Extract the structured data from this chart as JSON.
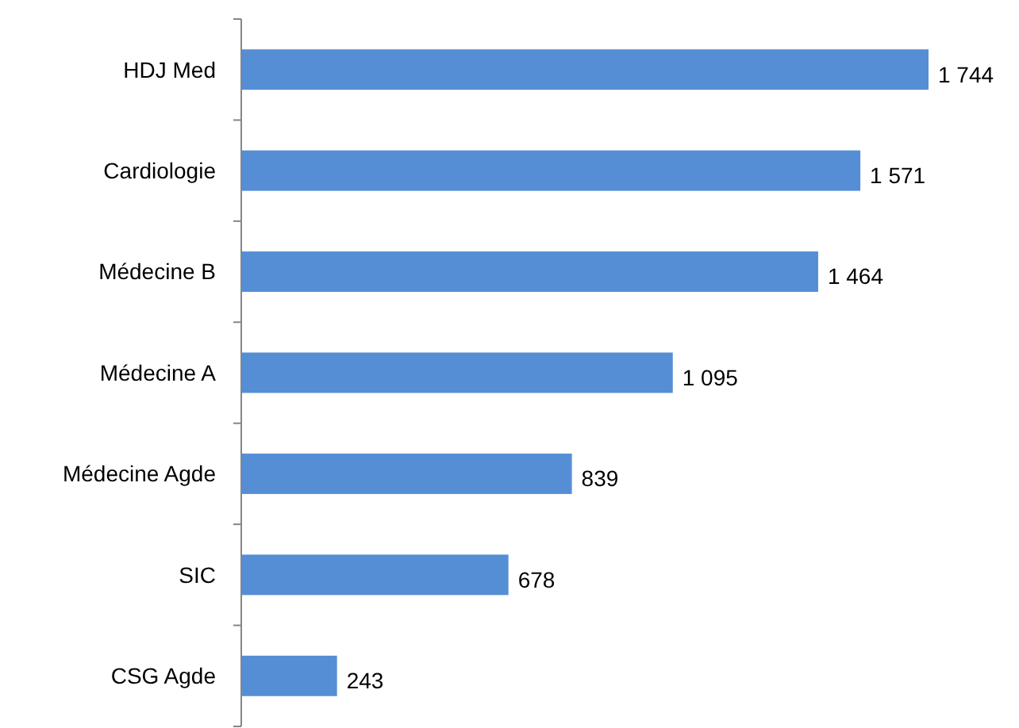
{
  "chart_data": {
    "type": "bar",
    "orientation": "horizontal",
    "categories": [
      "HDJ Med",
      "Cardiologie",
      "Médecine B",
      "Médecine A",
      "Médecine Agde",
      "SIC",
      "CSG Agde"
    ],
    "values": [
      1744,
      1571,
      1464,
      1095,
      839,
      678,
      243
    ],
    "value_labels": [
      "1 744",
      "1 571",
      "1 464",
      "1 095",
      "839",
      "678",
      "243"
    ],
    "color": "#558ed5"
  }
}
